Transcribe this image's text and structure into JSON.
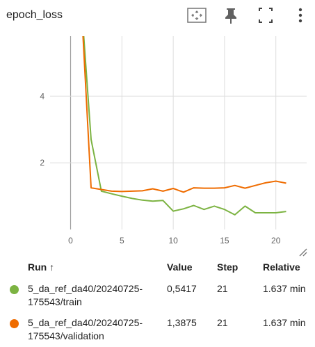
{
  "header": {
    "title": "epoch_loss",
    "icons": [
      "fit-domain-icon",
      "pin-icon",
      "fullscreen-icon",
      "more-vert-icon"
    ]
  },
  "chart_data": {
    "type": "line",
    "title": "epoch_loss",
    "xlabel": "",
    "ylabel": "",
    "xlim": [
      -2,
      23
    ],
    "ylim": [
      0,
      5.8
    ],
    "x_ticks": [
      "0",
      "5",
      "10",
      "15",
      "20"
    ],
    "x_tick_values": [
      0,
      5,
      10,
      15,
      20
    ],
    "y_ticks": [
      "2",
      "4"
    ],
    "y_tick_values": [
      2,
      4
    ],
    "grid": true,
    "series": [
      {
        "name": "5_da_ref_da40/20240725-175543/train",
        "color": "#7cb342",
        "x": [
          1,
          2,
          3,
          4,
          5,
          6,
          7,
          8,
          9,
          10,
          11,
          12,
          13,
          14,
          15,
          16,
          17,
          18,
          19,
          20,
          21
        ],
        "y": [
          7.0,
          2.7,
          1.15,
          1.07,
          1.0,
          0.93,
          0.88,
          0.85,
          0.87,
          0.55,
          0.62,
          0.72,
          0.6,
          0.7,
          0.6,
          0.44,
          0.7,
          0.5,
          0.5,
          0.5,
          0.54
        ]
      },
      {
        "name": "5_da_ref_da40/20240725-175543/validation",
        "color": "#ef6c00",
        "x": [
          1,
          2,
          3,
          4,
          5,
          6,
          7,
          8,
          9,
          10,
          11,
          12,
          13,
          14,
          15,
          16,
          17,
          18,
          19,
          20,
          21
        ],
        "y": [
          7.0,
          1.25,
          1.2,
          1.15,
          1.14,
          1.15,
          1.16,
          1.22,
          1.15,
          1.23,
          1.12,
          1.25,
          1.24,
          1.24,
          1.25,
          1.32,
          1.24,
          1.32,
          1.4,
          1.45,
          1.39
        ]
      }
    ]
  },
  "table": {
    "headers": {
      "run": "Run ↑",
      "value": "Value",
      "step": "Step",
      "relative": "Relative"
    },
    "rows": [
      {
        "color": "#7cb342",
        "run": "5_da_ref_da40/20240725-175543/train",
        "value": "0,5417",
        "step": "21",
        "relative": "1.637 min"
      },
      {
        "color": "#ef6c00",
        "run": "5_da_ref_da40/20240725-175543/validation",
        "value": "1,3875",
        "step": "21",
        "relative": "1.637 min"
      }
    ]
  }
}
